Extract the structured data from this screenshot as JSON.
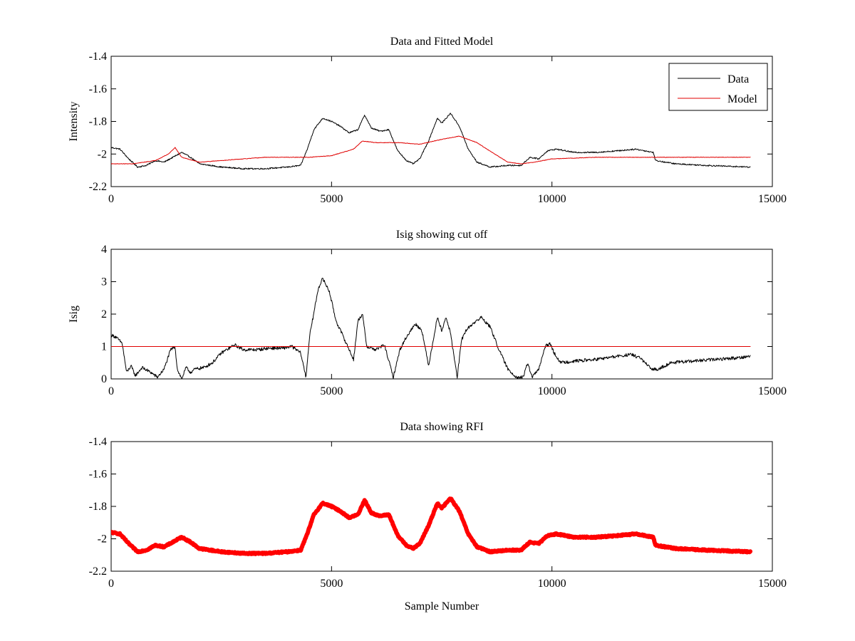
{
  "figure": {
    "background": "#ffffff"
  },
  "chart_data": [
    {
      "type": "line",
      "title": "Data and Fitted Model",
      "xlabel": "",
      "ylabel": "Intensity",
      "xlim": [
        0,
        15000
      ],
      "ylim": [
        -2.2,
        -1.4
      ],
      "xticks": [
        0,
        5000,
        10000,
        15000
      ],
      "xtick_labels": [
        "0",
        "5000",
        "10000",
        "15000"
      ],
      "yticks": [
        -2.2,
        -2.0,
        -1.8,
        -1.6,
        -1.4
      ],
      "ytick_labels": [
        "-2.2",
        "-2",
        "-1.8",
        "-1.6",
        "-1.4"
      ],
      "legend": {
        "position": "top-right",
        "entries": [
          "Data",
          "Model"
        ]
      },
      "series": [
        {
          "name": "Data",
          "color": "#000000",
          "noise": 0.004,
          "x": [
            0,
            200,
            400,
            600,
            800,
            1000,
            1200,
            1400,
            1600,
            1800,
            2000,
            2500,
            3000,
            3500,
            4000,
            4300,
            4450,
            4600,
            4800,
            5000,
            5200,
            5400,
            5600,
            5750,
            5900,
            6100,
            6300,
            6500,
            6700,
            6850,
            7000,
            7200,
            7400,
            7500,
            7700,
            7900,
            8100,
            8300,
            8600,
            9000,
            9300,
            9500,
            9700,
            9900,
            10100,
            10500,
            11000,
            11500,
            11900,
            12300,
            12350,
            12800,
            13500,
            14500
          ],
          "values": [
            -1.96,
            -1.97,
            -2.03,
            -2.08,
            -2.07,
            -2.04,
            -2.05,
            -2.02,
            -1.99,
            -2.02,
            -2.06,
            -2.08,
            -2.09,
            -2.09,
            -2.08,
            -2.07,
            -1.97,
            -1.85,
            -1.78,
            -1.8,
            -1.83,
            -1.87,
            -1.85,
            -1.76,
            -1.84,
            -1.86,
            -1.85,
            -1.98,
            -2.04,
            -2.06,
            -2.03,
            -1.92,
            -1.78,
            -1.81,
            -1.75,
            -1.83,
            -1.97,
            -2.05,
            -2.08,
            -2.07,
            -2.07,
            -2.02,
            -2.03,
            -1.98,
            -1.97,
            -1.99,
            -1.99,
            -1.98,
            -1.97,
            -1.99,
            -2.04,
            -2.06,
            -2.07,
            -2.08
          ]
        },
        {
          "name": "Model",
          "color": "#e00000",
          "noise": 0.0015,
          "x": [
            0,
            500,
            1000,
            1300,
            1450,
            1600,
            2000,
            2500,
            3000,
            3500,
            4000,
            4500,
            5000,
            5500,
            5700,
            6000,
            6500,
            7000,
            7500,
            7900,
            8300,
            8700,
            9000,
            9300,
            9600,
            10000,
            11000,
            12000,
            14500
          ],
          "values": [
            -2.06,
            -2.06,
            -2.04,
            -2.0,
            -1.96,
            -2.02,
            -2.05,
            -2.04,
            -2.03,
            -2.02,
            -2.02,
            -2.02,
            -2.01,
            -1.97,
            -1.92,
            -1.93,
            -1.93,
            -1.94,
            -1.91,
            -1.89,
            -1.93,
            -2.0,
            -2.05,
            -2.06,
            -2.05,
            -2.03,
            -2.02,
            -2.02,
            -2.02
          ]
        }
      ]
    },
    {
      "type": "line",
      "title": "Isig showing cut off",
      "xlabel": "",
      "ylabel": "Isig",
      "xlim": [
        0,
        15000
      ],
      "ylim": [
        0,
        4
      ],
      "xticks": [
        0,
        5000,
        10000,
        15000
      ],
      "xtick_labels": [
        "0",
        "5000",
        "10000",
        "15000"
      ],
      "yticks": [
        0,
        1,
        2,
        3,
        4
      ],
      "ytick_labels": [
        "0",
        "1",
        "2",
        "3",
        "4"
      ],
      "series": [
        {
          "name": "Isig",
          "color": "#000000",
          "noise": 0.05,
          "x": [
            0,
            100,
            250,
            350,
            450,
            550,
            700,
            900,
            1050,
            1200,
            1350,
            1450,
            1500,
            1600,
            1700,
            1800,
            1900,
            2100,
            2300,
            2500,
            2800,
            3000,
            3300,
            3600,
            3900,
            4100,
            4300,
            4420,
            4500,
            4700,
            4800,
            4950,
            5100,
            5300,
            5500,
            5600,
            5700,
            5800,
            6000,
            6200,
            6400,
            6550,
            6700,
            6900,
            7050,
            7200,
            7400,
            7500,
            7600,
            7700,
            7850,
            7950,
            8050,
            8200,
            8400,
            8600,
            8800,
            9000,
            9200,
            9350,
            9450,
            9550,
            9700,
            9850,
            9950,
            10050,
            10200,
            10500,
            11000,
            11500,
            11800,
            12000,
            12250,
            12400,
            12700,
            13200,
            13700,
            14200,
            14500
          ],
          "values": [
            1.35,
            1.3,
            1.1,
            0.2,
            0.4,
            0.1,
            0.35,
            0.2,
            0.05,
            0.3,
            0.9,
            1.0,
            0.3,
            0.0,
            0.35,
            0.2,
            0.3,
            0.35,
            0.5,
            0.8,
            1.05,
            0.9,
            0.9,
            0.95,
            0.95,
            1.0,
            0.8,
            0.05,
            1.3,
            2.8,
            3.1,
            2.7,
            1.8,
            1.2,
            0.6,
            1.8,
            2.0,
            1.0,
            0.9,
            1.05,
            0.05,
            0.9,
            1.3,
            1.7,
            1.5,
            0.4,
            1.9,
            1.5,
            1.9,
            1.4,
            0.05,
            1.2,
            1.5,
            1.7,
            1.9,
            1.6,
            0.9,
            0.3,
            0.05,
            0.05,
            0.5,
            0.05,
            0.3,
            1.0,
            1.1,
            0.8,
            0.5,
            0.55,
            0.6,
            0.7,
            0.75,
            0.65,
            0.3,
            0.3,
            0.5,
            0.55,
            0.6,
            0.65,
            0.7
          ]
        },
        {
          "name": "Cut off",
          "color": "#e00000",
          "noise": 0,
          "x": [
            0,
            14500
          ],
          "values": [
            1,
            1
          ]
        }
      ]
    },
    {
      "type": "line",
      "title": "Data showing RFI",
      "xlabel": "Sample Number",
      "ylabel": "",
      "xlim": [
        0,
        15000
      ],
      "ylim": [
        -2.2,
        -1.4
      ],
      "xticks": [
        0,
        5000,
        10000,
        15000
      ],
      "xtick_labels": [
        "0",
        "5000",
        "10000",
        "15000"
      ],
      "yticks": [
        -2.2,
        -2.0,
        -1.8,
        -1.6,
        -1.4
      ],
      "ytick_labels": [
        "-2.2",
        "-2",
        "-1.8",
        "-1.6",
        "-1.4"
      ],
      "series": [
        {
          "name": "RFI",
          "color": "#ff0000",
          "thick": true,
          "noise": 0.004,
          "x": [
            0,
            200,
            400,
            600,
            800,
            1000,
            1200,
            1400,
            1600,
            1800,
            2000,
            2500,
            3000,
            3500,
            4000,
            4300,
            4450,
            4600,
            4800,
            5000,
            5200,
            5400,
            5600,
            5750,
            5900,
            6100,
            6300,
            6500,
            6700,
            6850,
            7000,
            7200,
            7400,
            7500,
            7700,
            7900,
            8100,
            8300,
            8600,
            9000,
            9300,
            9500,
            9700,
            9900,
            10100,
            10500,
            11000,
            11500,
            11900,
            12300,
            12350,
            12800,
            13500,
            14500
          ],
          "values": [
            -1.96,
            -1.97,
            -2.03,
            -2.08,
            -2.07,
            -2.04,
            -2.05,
            -2.02,
            -1.99,
            -2.02,
            -2.06,
            -2.08,
            -2.09,
            -2.09,
            -2.08,
            -2.07,
            -1.97,
            -1.85,
            -1.78,
            -1.8,
            -1.83,
            -1.87,
            -1.85,
            -1.76,
            -1.84,
            -1.86,
            -1.85,
            -1.98,
            -2.04,
            -2.06,
            -2.03,
            -1.92,
            -1.78,
            -1.81,
            -1.75,
            -1.83,
            -1.97,
            -2.05,
            -2.08,
            -2.07,
            -2.07,
            -2.02,
            -2.03,
            -1.98,
            -1.97,
            -1.99,
            -1.99,
            -1.98,
            -1.97,
            -1.99,
            -2.04,
            -2.06,
            -2.07,
            -2.08
          ]
        }
      ]
    }
  ]
}
